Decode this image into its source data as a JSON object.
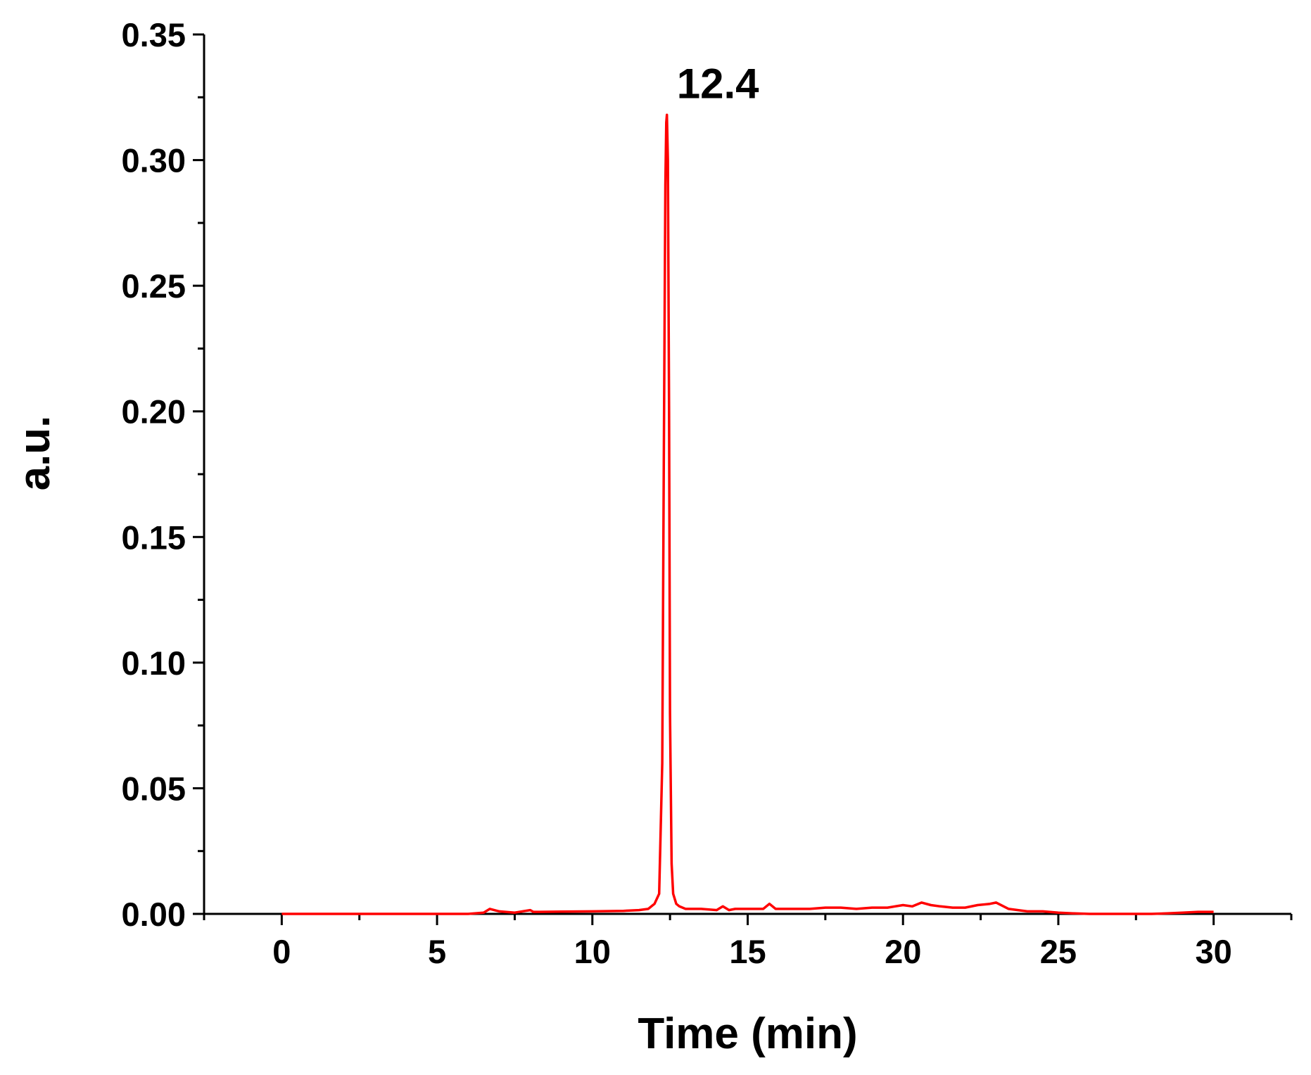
{
  "chart_data": {
    "type": "line",
    "title": "",
    "xlabel": "Time (min)",
    "ylabel": "a.u.",
    "xlim": [
      -2.5,
      32.5
    ],
    "ylim": [
      0,
      0.35
    ],
    "x_ticks": [
      0,
      5,
      10,
      15,
      20,
      25,
      30
    ],
    "x_tick_labels": [
      "0",
      "5",
      "10",
      "15",
      "20",
      "25",
      "30"
    ],
    "y_ticks": [
      0,
      0.05,
      0.1,
      0.15,
      0.2,
      0.25,
      0.3,
      0.35
    ],
    "y_tick_labels": [
      "0.00",
      "0.05",
      "0.10",
      "0.15",
      "0.20",
      "0.25",
      "0.30",
      "0.35"
    ],
    "grid": false,
    "legend": "none",
    "annotations": [
      {
        "text": "12.4",
        "x": 12.4,
        "y": 0.318
      }
    ],
    "series": [
      {
        "color": "#ff0000",
        "x": [
          0,
          1,
          2,
          3,
          4,
          5,
          6,
          6.5,
          6.7,
          7.0,
          7.5,
          8.0,
          8.1,
          8.3,
          9,
          10,
          11,
          11.5,
          11.8,
          12.0,
          12.15,
          12.25,
          12.3,
          12.35,
          12.38,
          12.4,
          12.43,
          12.47,
          12.5,
          12.55,
          12.6,
          12.7,
          12.8,
          13.0,
          13.5,
          14.0,
          14.2,
          14.4,
          14.6,
          15.0,
          15.5,
          15.7,
          15.9,
          16.5,
          17.0,
          17.5,
          18.0,
          18.5,
          19.0,
          19.5,
          20.0,
          20.3,
          20.6,
          20.9,
          21.2,
          21.6,
          22.0,
          22.4,
          22.8,
          23.0,
          23.4,
          24.0,
          24.5,
          25.0,
          25.5,
          26.0,
          27.0,
          28.0,
          28.5,
          29.0,
          29.5,
          30.0
        ],
        "y": [
          0,
          0,
          0,
          0,
          0,
          0,
          0,
          0.0005,
          0.002,
          0.001,
          0.0005,
          0.0015,
          0.0008,
          0.0008,
          0.0009,
          0.001,
          0.0012,
          0.0015,
          0.002,
          0.004,
          0.008,
          0.06,
          0.18,
          0.29,
          0.315,
          0.318,
          0.3,
          0.2,
          0.08,
          0.02,
          0.008,
          0.004,
          0.003,
          0.002,
          0.002,
          0.0015,
          0.003,
          0.0015,
          0.002,
          0.002,
          0.002,
          0.004,
          0.002,
          0.002,
          0.002,
          0.0025,
          0.0025,
          0.002,
          0.0025,
          0.0025,
          0.0035,
          0.003,
          0.0045,
          0.0035,
          0.003,
          0.0025,
          0.0025,
          0.0035,
          0.004,
          0.0045,
          0.002,
          0.001,
          0.001,
          0.0005,
          0.0002,
          0,
          0,
          0,
          0.0002,
          0.0005,
          0.0008,
          0.0008
        ]
      }
    ]
  }
}
